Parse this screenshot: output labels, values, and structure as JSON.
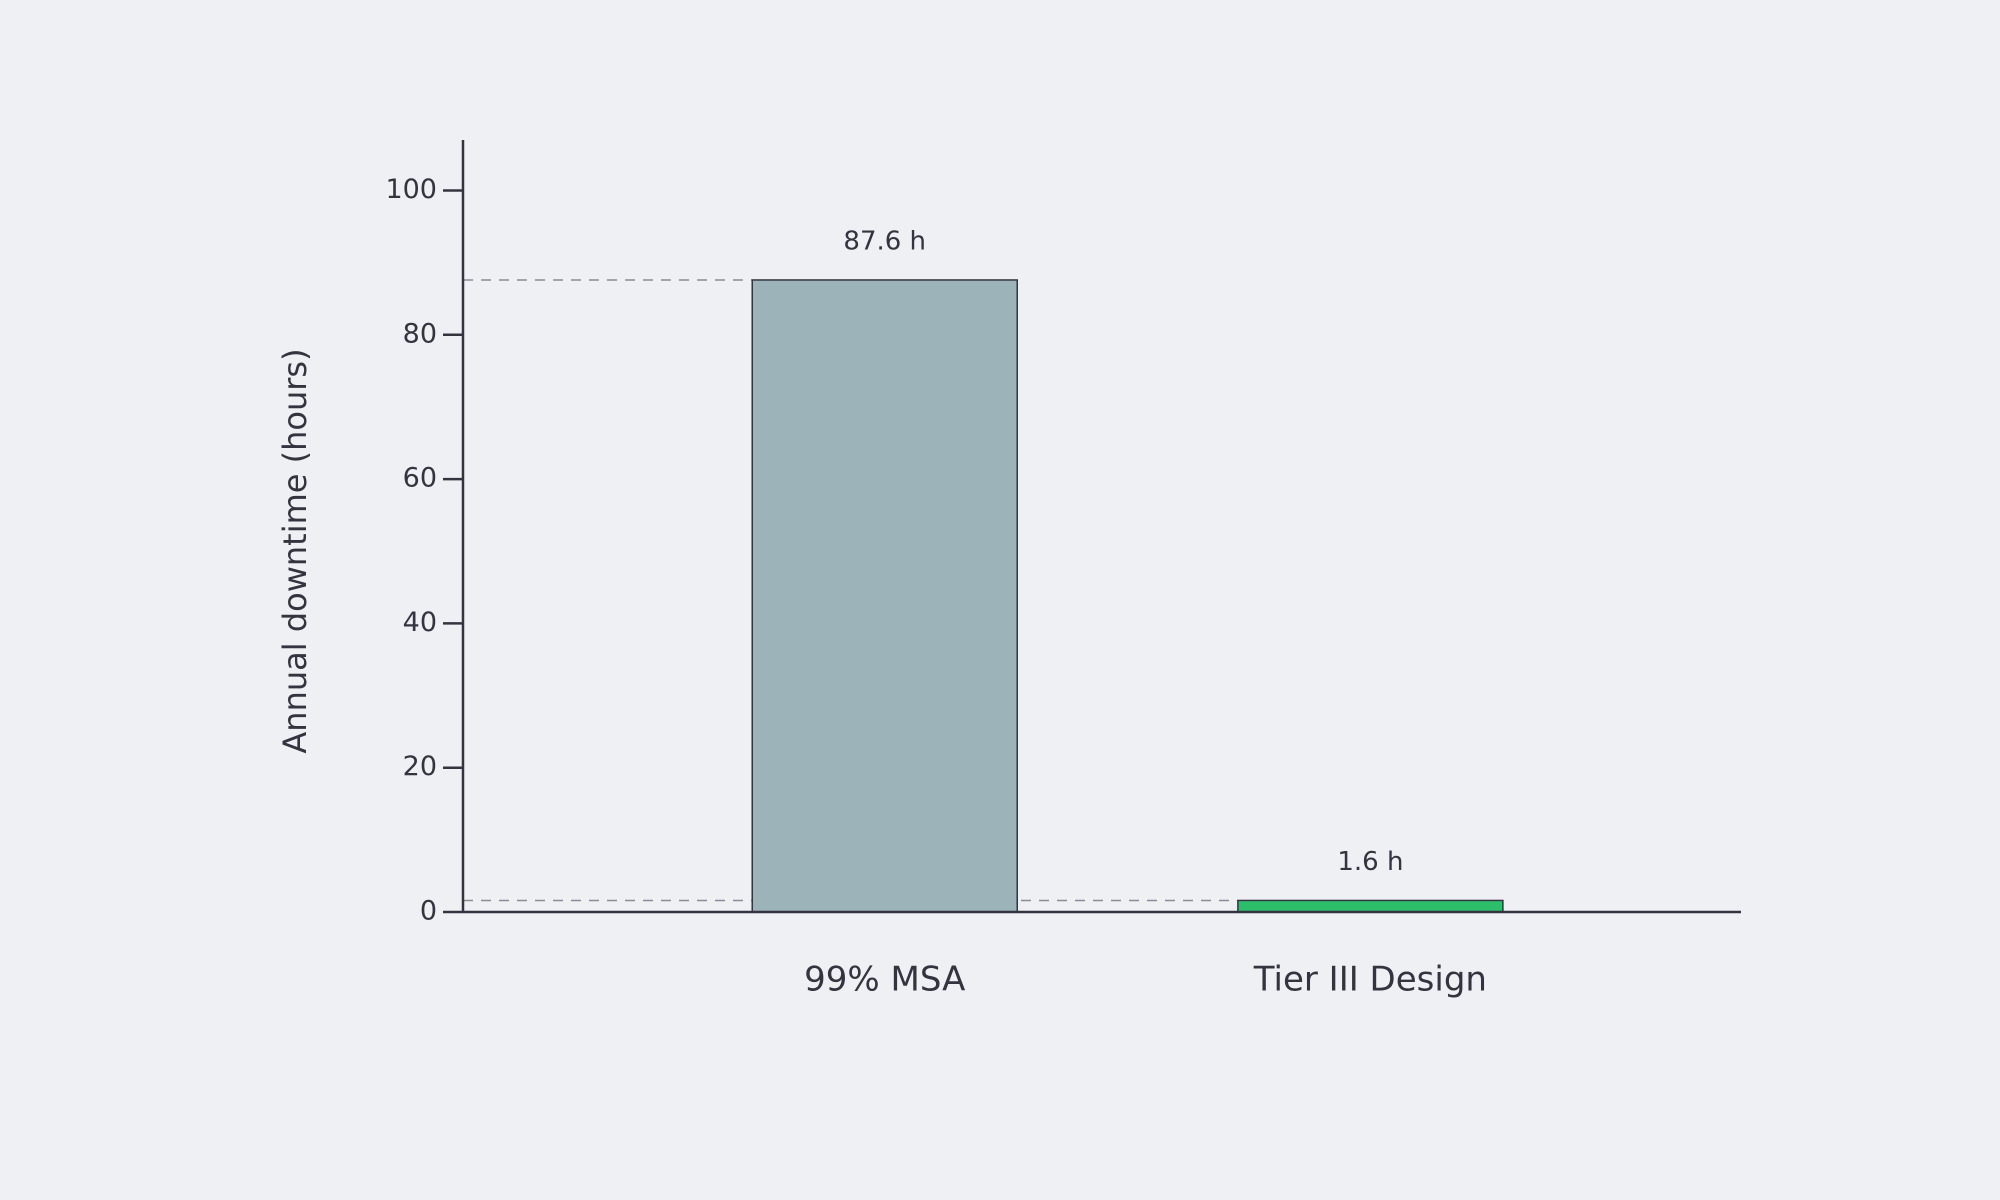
{
  "chart_data": {
    "type": "bar",
    "y_label": "Annual downtime (hours)",
    "categories": [
      "99% MSA",
      "Tier III Design"
    ],
    "values": [
      87.6,
      1.6
    ],
    "value_labels": [
      "87.6 h",
      "1.6 h"
    ],
    "colors": [
      "#9db3ba",
      "#2dbe6c"
    ],
    "ylim": [
      0,
      107
    ],
    "yticks": [
      0,
      20,
      40,
      60,
      80,
      100
    ],
    "reference_lines": true
  }
}
